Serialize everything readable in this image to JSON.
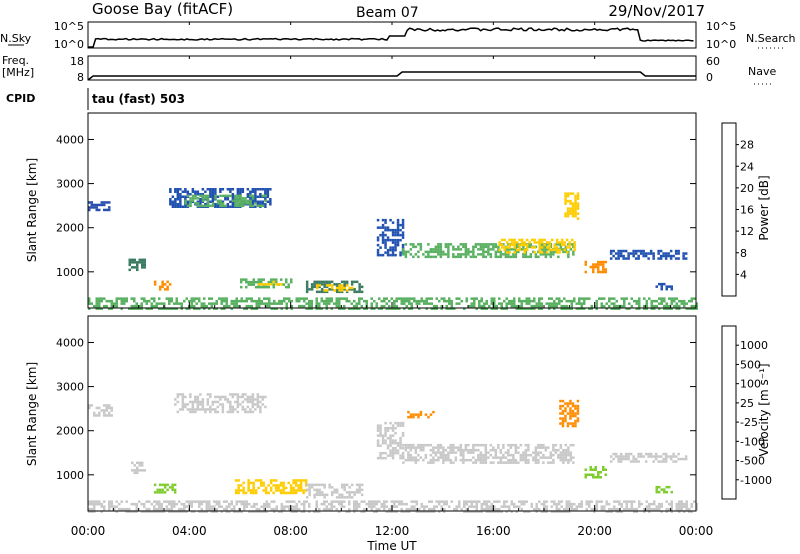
{
  "header": {
    "station": "Goose Bay (fitACF)",
    "beam": "Beam 07",
    "date": "29/Nov/2017"
  },
  "top_panel": {
    "left_label": "N.Sky",
    "right_label": "N.Search",
    "left_ticks": [
      "10^5",
      "10^0"
    ],
    "right_ticks": [
      "10^5",
      "10^0"
    ]
  },
  "freq_panel": {
    "left_label_1": "Freq.",
    "left_label_2": "[MHz]",
    "right_label": "Nave",
    "left_ticks": [
      "18",
      "8"
    ],
    "right_ticks": [
      "60",
      "0"
    ]
  },
  "cpid": {
    "label": "CPID",
    "value": "tau (fast) 503"
  },
  "chart_data": [
    {
      "type": "heatmap",
      "name": "power",
      "ylabel": "Slant Range [km]",
      "xlabel": "Time UT",
      "ylim": [
        180,
        4600
      ],
      "y_ticks": [
        "1000",
        "2000",
        "3000",
        "4000"
      ],
      "colorbar_label": "Power [dB]",
      "colorbar_ticks": [
        "4",
        "8",
        "12",
        "16",
        "20",
        "24",
        "28"
      ],
      "colorbar_colors": [
        "#1010e0",
        "#2050b0",
        "#3a7a60",
        "#58b060",
        "#ffcc00",
        "#ff8c00",
        "#ff5000",
        "#e00000"
      ],
      "bands": [
        {
          "t0": 0.0,
          "t1": 0.8,
          "r0": 2400,
          "r1": 2600,
          "color": "#2a4fb0"
        },
        {
          "t0": 1.6,
          "t1": 2.2,
          "r0": 1050,
          "r1": 1300,
          "color": "#3a7a60"
        },
        {
          "t0": 2.6,
          "t1": 3.2,
          "r0": 600,
          "r1": 800,
          "color": "#ff8c00"
        },
        {
          "t0": 3.2,
          "t1": 7.2,
          "r0": 2450,
          "r1": 2900,
          "color": "#2050b0"
        },
        {
          "t0": 3.8,
          "t1": 7.0,
          "r0": 2500,
          "r1": 2750,
          "color": "#58b060"
        },
        {
          "t0": 6.0,
          "t1": 8.0,
          "r0": 650,
          "r1": 850,
          "color": "#58b060"
        },
        {
          "t0": 6.6,
          "t1": 7.6,
          "r0": 700,
          "r1": 800,
          "color": "#ffcc00"
        },
        {
          "t0": 8.6,
          "t1": 10.8,
          "r0": 550,
          "r1": 800,
          "color": "#3a7a60"
        },
        {
          "t0": 9.0,
          "t1": 10.4,
          "r0": 600,
          "r1": 720,
          "color": "#ffcc00"
        },
        {
          "t0": 11.4,
          "t1": 12.4,
          "r0": 1400,
          "r1": 2200,
          "color": "#2050b0"
        },
        {
          "t0": 12.4,
          "t1": 19.2,
          "r0": 1350,
          "r1": 1650,
          "color": "#58b060"
        },
        {
          "t0": 16.2,
          "t1": 19.2,
          "r0": 1450,
          "r1": 1750,
          "color": "#ffcc00"
        },
        {
          "t0": 18.8,
          "t1": 19.3,
          "r0": 2200,
          "r1": 2800,
          "color": "#ffcc00"
        },
        {
          "t0": 19.6,
          "t1": 20.4,
          "r0": 1000,
          "r1": 1250,
          "color": "#ff8c00"
        },
        {
          "t0": 20.6,
          "t1": 23.6,
          "r0": 1300,
          "r1": 1500,
          "color": "#2050b0"
        },
        {
          "t0": 22.4,
          "t1": 23.0,
          "r0": 600,
          "r1": 750,
          "color": "#2050b0"
        },
        {
          "t0": 0.0,
          "t1": 24.0,
          "r0": 180,
          "r1": 420,
          "color": "#58b060"
        }
      ]
    },
    {
      "type": "heatmap",
      "name": "velocity",
      "ylabel": "Slant Range [km]",
      "xlabel": "Time UT",
      "ylim": [
        180,
        4600
      ],
      "y_ticks": [
        "1000",
        "2000",
        "3000",
        "4000"
      ],
      "colorbar_label": "Velocity [m s⁻¹]",
      "colorbar_ticks": [
        "1000",
        "500",
        "100",
        "25",
        "-25",
        "-100",
        "-500",
        "-1000"
      ],
      "colorbar_colors": [
        "#1020c0",
        "#2a50a8",
        "#3a8a50",
        "#80cc30",
        "#c8c8c8",
        "#ffcc00",
        "#ff8c00",
        "#ff5000",
        "#e00000"
      ],
      "bands": [
        {
          "t0": 0.0,
          "t1": 0.9,
          "r0": 2350,
          "r1": 2600,
          "color": "#c8c8c8"
        },
        {
          "t0": 1.6,
          "t1": 2.2,
          "r0": 1050,
          "r1": 1300,
          "color": "#c8c8c8"
        },
        {
          "t0": 2.6,
          "t1": 3.4,
          "r0": 600,
          "r1": 800,
          "color": "#80cc30"
        },
        {
          "t0": 3.4,
          "t1": 7.0,
          "r0": 2450,
          "r1": 2850,
          "color": "#c8c8c8"
        },
        {
          "t0": 5.8,
          "t1": 8.6,
          "r0": 600,
          "r1": 900,
          "color": "#ffcc00"
        },
        {
          "t0": 8.6,
          "t1": 10.8,
          "r0": 500,
          "r1": 800,
          "color": "#c8c8c8"
        },
        {
          "t0": 11.4,
          "t1": 12.4,
          "r0": 1400,
          "r1": 2200,
          "color": "#c8c8c8"
        },
        {
          "t0": 12.4,
          "t1": 19.2,
          "r0": 1300,
          "r1": 1700,
          "color": "#c8c8c8"
        },
        {
          "t0": 12.6,
          "t1": 13.6,
          "r0": 2300,
          "r1": 2450,
          "color": "#ff8c00"
        },
        {
          "t0": 18.6,
          "t1": 19.3,
          "r0": 2100,
          "r1": 2700,
          "color": "#ff8c00"
        },
        {
          "t0": 19.6,
          "t1": 20.4,
          "r0": 950,
          "r1": 1200,
          "color": "#80cc30"
        },
        {
          "t0": 20.6,
          "t1": 23.6,
          "r0": 1300,
          "r1": 1500,
          "color": "#c8c8c8"
        },
        {
          "t0": 22.4,
          "t1": 23.0,
          "r0": 600,
          "r1": 750,
          "color": "#80cc30"
        },
        {
          "t0": 0.0,
          "t1": 24.0,
          "r0": 180,
          "r1": 420,
          "color": "#c8c8c8"
        }
      ]
    }
  ],
  "x_ticks": [
    "00:00",
    "04:00",
    "08:00",
    "12:00",
    "16:00",
    "20:00",
    "00:00"
  ],
  "x_label": "Time UT"
}
